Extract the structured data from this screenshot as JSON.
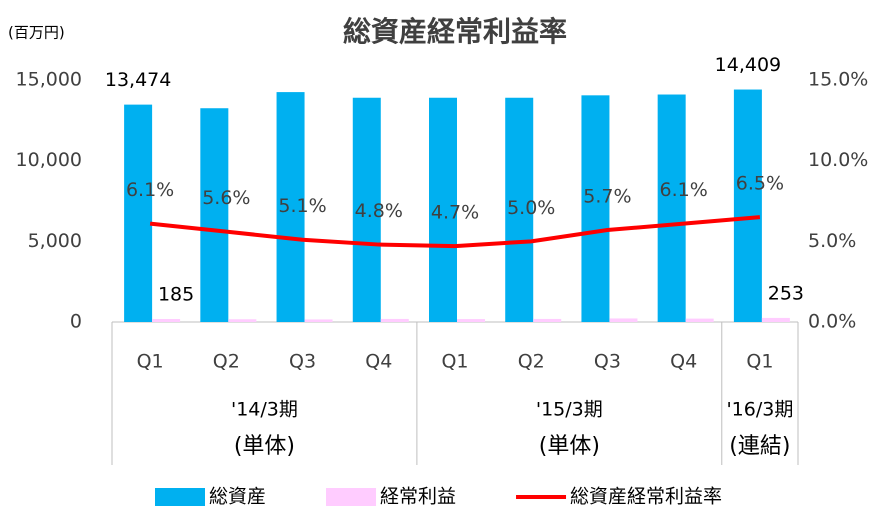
{
  "chart_data": {
    "type": "bar-line",
    "title": "総資産経常利益率",
    "y_unit": "(百万円)",
    "categories": [
      "Q1",
      "Q2",
      "Q3",
      "Q4",
      "Q1",
      "Q2",
      "Q3",
      "Q4",
      "Q1"
    ],
    "groups": [
      {
        "label": "'14/3期",
        "note": "(単体)",
        "count": 4
      },
      {
        "label": "'15/3期",
        "note": "(単体)",
        "count": 4
      },
      {
        "label": "'16/3期",
        "note": "(連結)",
        "count": 1
      }
    ],
    "series": [
      {
        "name": "総資産",
        "color": "#00b0f0",
        "kind": "bar",
        "values": [
          13474,
          13250,
          14250,
          13900,
          13900,
          13900,
          14050,
          14100,
          14409
        ],
        "value_labels": [
          "13,474",
          null,
          null,
          null,
          null,
          null,
          null,
          null,
          "14,409"
        ]
      },
      {
        "name": "経常利益",
        "color": "#ffccff",
        "kind": "bar",
        "values": [
          185,
          170,
          160,
          190,
          180,
          190,
          220,
          210,
          253
        ],
        "value_labels": [
          "185",
          null,
          null,
          null,
          null,
          null,
          null,
          null,
          "253"
        ]
      },
      {
        "name": "総資産経常利益率",
        "color": "#ff0000",
        "kind": "line",
        "axis": "y2",
        "values": [
          6.1,
          5.6,
          5.1,
          4.8,
          4.7,
          5.0,
          5.7,
          6.1,
          6.5
        ],
        "value_labels": [
          "6.1%",
          "5.6%",
          "5.1%",
          "4.8%",
          "4.7%",
          "5.0%",
          "5.7%",
          "6.1%",
          "6.5%"
        ]
      }
    ],
    "ylim": [
      0,
      15000
    ],
    "yticks": [
      0,
      {
        "value": 5000,
        "label": "5,000"
      },
      {
        "value": 10000,
        "label": "10,000"
      },
      {
        "value": 15000,
        "label": "15,000"
      }
    ],
    "y2lim": [
      0,
      15
    ],
    "y2ticks": [
      {
        "value": 0,
        "label": "0.0%"
      },
      {
        "value": 5,
        "label": "5.0%"
      },
      {
        "value": 10,
        "label": "10.0%"
      },
      {
        "value": 15,
        "label": "15.0%"
      }
    ],
    "legend": "bottom"
  }
}
